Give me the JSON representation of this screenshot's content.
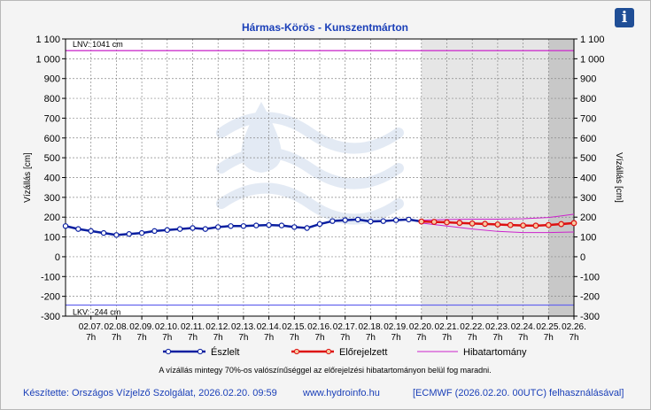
{
  "info_icon": {
    "name": "info-icon",
    "glyph": "i"
  },
  "footer": {
    "author": "Készítette: Országos Vízjelző Szolgálat, 2026.02.20. 09:59",
    "website": "www.hydroinfo.hu",
    "source": "[ECMWF (2026.02.20. 00UTC) felhasználásával]"
  },
  "chart_data": {
    "type": "line",
    "title": "Hármas-Körös - Kunszentmárton",
    "ylabel_left": "Vízállás [cm]",
    "ylabel_right": "Vízállás [cm]",
    "ylim": [
      -300,
      1100
    ],
    "yticks": [
      -300,
      -200,
      -100,
      0,
      100,
      200,
      300,
      400,
      500,
      600,
      700,
      800,
      900,
      1000,
      1100
    ],
    "ytick_labels": [
      "-300",
      "-200",
      "-100",
      "0",
      "100",
      "200",
      "300",
      "400",
      "500",
      "600",
      "700",
      "800",
      "900",
      "1 000",
      "1 100"
    ],
    "x_start": "02.06. 7h",
    "x_end": "02.26. 7h",
    "xtick_dates": [
      "02.07.",
      "02.08.",
      "02.09.",
      "02.10.",
      "02.11.",
      "02.12.",
      "02.13.",
      "02.14.",
      "02.15.",
      "02.16.",
      "02.17.",
      "02.18.",
      "02.19.",
      "02.20.",
      "02.21.",
      "02.22.",
      "02.23.",
      "02.24.",
      "02.25.",
      "02.26."
    ],
    "xtick_time": "7h",
    "grid": true,
    "forecast_start": "02.20. 7h",
    "extended_start": "02.25. 7h",
    "legend_position": "bottom",
    "reference_lines": [
      {
        "name": "LNV",
        "label": "LNV: 1041 cm",
        "value": 1041,
        "color": "#cc33cc"
      },
      {
        "name": "LKV",
        "label": "LKV: -244 cm",
        "value": -244,
        "color": "#6666ee"
      }
    ],
    "series": [
      {
        "name": "Észlelt",
        "color": "#0a1fa0",
        "x": [
          "02.06. 7h",
          "02.06. 19h",
          "02.07. 7h",
          "02.07. 19h",
          "02.08. 7h",
          "02.08. 19h",
          "02.09. 7h",
          "02.09. 19h",
          "02.10. 7h",
          "02.10. 19h",
          "02.11. 7h",
          "02.11. 19h",
          "02.12. 7h",
          "02.12. 19h",
          "02.13. 7h",
          "02.13. 19h",
          "02.14. 7h",
          "02.14. 19h",
          "02.15. 7h",
          "02.15. 19h",
          "02.16. 7h",
          "02.16. 19h",
          "02.17. 7h",
          "02.17. 19h",
          "02.18. 7h",
          "02.18. 19h",
          "02.19. 7h",
          "02.19. 19h",
          "02.20. 7h"
        ],
        "values": [
          155,
          140,
          130,
          120,
          110,
          115,
          120,
          130,
          135,
          140,
          145,
          140,
          150,
          155,
          155,
          158,
          160,
          158,
          150,
          145,
          165,
          180,
          185,
          188,
          178,
          180,
          185,
          188,
          178
        ]
      },
      {
        "name": "Előrejelzett",
        "color": "#dd1111",
        "x": [
          "02.20. 7h",
          "02.20. 19h",
          "02.21. 7h",
          "02.21. 19h",
          "02.22. 7h",
          "02.22. 19h",
          "02.23. 7h",
          "02.23. 19h",
          "02.24. 7h",
          "02.24. 19h",
          "02.25. 7h",
          "02.25. 19h",
          "02.26. 7h"
        ],
        "values": [
          178,
          176,
          174,
          171,
          168,
          166,
          163,
          160,
          158,
          157,
          160,
          165,
          170
        ]
      },
      {
        "name": "Hibatartomány",
        "color": "#cc22cc",
        "x": [
          "02.20. 7h",
          "02.21. 7h",
          "02.22. 7h",
          "02.23. 7h",
          "02.24. 7h",
          "02.25. 7h",
          "02.26. 7h"
        ],
        "upper": [
          185,
          188,
          190,
          190,
          192,
          198,
          215
        ],
        "lower": [
          170,
          155,
          140,
          128,
          122,
          122,
          125
        ]
      }
    ],
    "note": "A vízállás mintegy 70%-os valószínűséggel az előrejelzési hibatartományon belül fog maradni."
  }
}
